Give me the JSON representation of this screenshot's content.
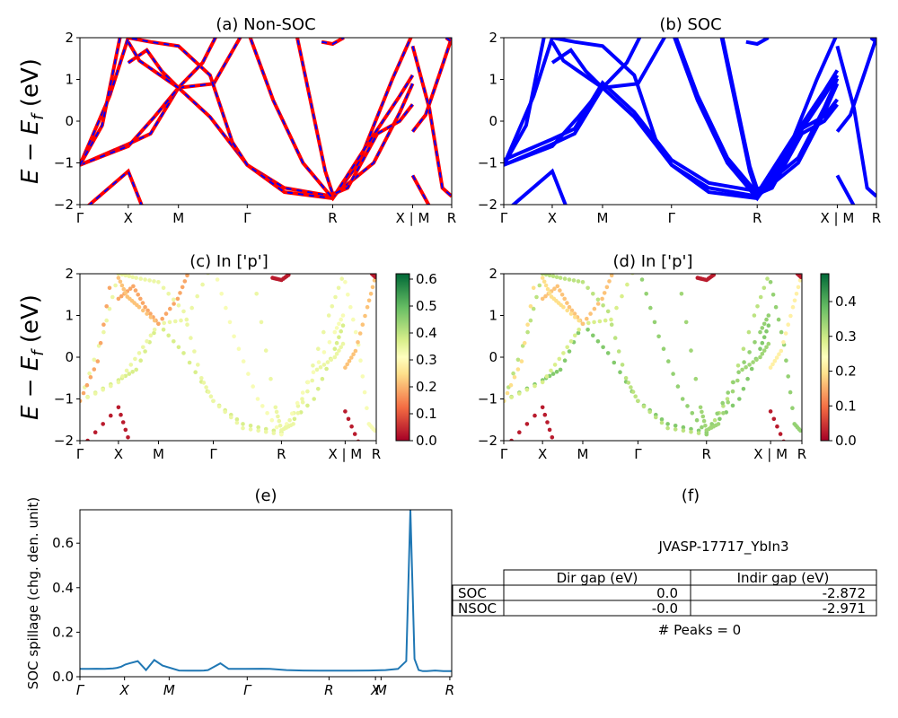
{
  "chart_data": [
    {
      "id": "a",
      "type": "line",
      "title": "(a) Non-SOC",
      "ylabel": "E − E_f (eV)",
      "ylim": [
        -2,
        2
      ],
      "yticks": [
        -2,
        -1,
        0,
        1,
        2
      ],
      "xticks": [
        "Γ",
        "X",
        "M",
        "Γ",
        "R",
        "X | M",
        "R"
      ],
      "colors": {
        "line": "#ff0000",
        "dash": "#0000ff"
      },
      "series_note": "band lines (red solid with blue dashes)"
    },
    {
      "id": "b",
      "type": "line",
      "title": "(b) SOC",
      "ylim": [
        -2,
        2
      ],
      "yticks": [
        -2,
        -1,
        0,
        1,
        2
      ],
      "xticks": [
        "Γ",
        "X",
        "M",
        "Γ",
        "R",
        "X | M",
        "R"
      ],
      "colors": {
        "line": "#0000ff"
      }
    },
    {
      "id": "c",
      "type": "scatter",
      "title": "(c)  In ['p']",
      "ylabel": "E − E_f (eV)",
      "ylim": [
        -2,
        2
      ],
      "yticks": [
        -2,
        -1,
        0,
        1,
        2
      ],
      "xticks": [
        "Γ",
        "X",
        "M",
        "Γ",
        "R",
        "X | M",
        "R"
      ],
      "colorbar": {
        "min": 0.0,
        "max": 0.62,
        "ticks": [
          "0.0",
          "0.1",
          "0.2",
          "0.3",
          "0.4",
          "0.5",
          "0.6"
        ],
        "colormap": "RdYlGn"
      }
    },
    {
      "id": "d",
      "type": "scatter",
      "title": "(d) In ['p']",
      "ylim": [
        -2,
        2
      ],
      "yticks": [
        -2,
        -1,
        0,
        1,
        2
      ],
      "xticks": [
        "Γ",
        "X",
        "M",
        "Γ",
        "R",
        "X | M",
        "R"
      ],
      "colorbar": {
        "min": 0.0,
        "max": 0.48,
        "ticks": [
          "0.0",
          "0.1",
          "0.2",
          "0.3",
          "0.4"
        ],
        "colormap": "RdYlGn"
      }
    },
    {
      "id": "e",
      "type": "line",
      "title": "(e)",
      "ylabel": "SOC spillage (chg. den. unit)",
      "ylim": [
        0,
        0.75
      ],
      "yticks": [
        "0.0",
        "0.2",
        "0.4",
        "0.6"
      ],
      "xticks": [
        "Γ",
        "X",
        "M",
        "Γ",
        "R",
        "X",
        "M",
        "R"
      ],
      "x": [
        0,
        2,
        4,
        6,
        8,
        9,
        10,
        11,
        12,
        14,
        16,
        18,
        20,
        24,
        26,
        28,
        29,
        30,
        31,
        32,
        34,
        36,
        40,
        44,
        46,
        50,
        54,
        58,
        62,
        66,
        70,
        74,
        77,
        79,
        80,
        81,
        82,
        83,
        84,
        86,
        88,
        90
      ],
      "y": [
        0.035,
        0.035,
        0.036,
        0.035,
        0.037,
        0.04,
        0.045,
        0.055,
        0.06,
        0.07,
        0.03,
        0.075,
        0.05,
        0.028,
        0.027,
        0.027,
        0.027,
        0.028,
        0.03,
        0.04,
        0.06,
        0.035,
        0.035,
        0.036,
        0.035,
        0.03,
        0.028,
        0.027,
        0.027,
        0.027,
        0.028,
        0.03,
        0.035,
        0.07,
        0.75,
        0.08,
        0.03,
        0.025,
        0.025,
        0.028,
        0.025,
        0.025
      ],
      "colors": {
        "line": "#1f77b4"
      }
    },
    {
      "id": "f",
      "type": "table",
      "title": "(f)",
      "caption": "JVASP-17717_YbIn3",
      "columns": [
        "",
        "Dir gap (eV)",
        "Indir gap (eV)"
      ],
      "rows": [
        [
          "SOC",
          "0.0",
          "-2.872"
        ],
        [
          "NSOC",
          "-0.0",
          "-2.971"
        ]
      ],
      "footer": "# Peaks = 0"
    }
  ]
}
